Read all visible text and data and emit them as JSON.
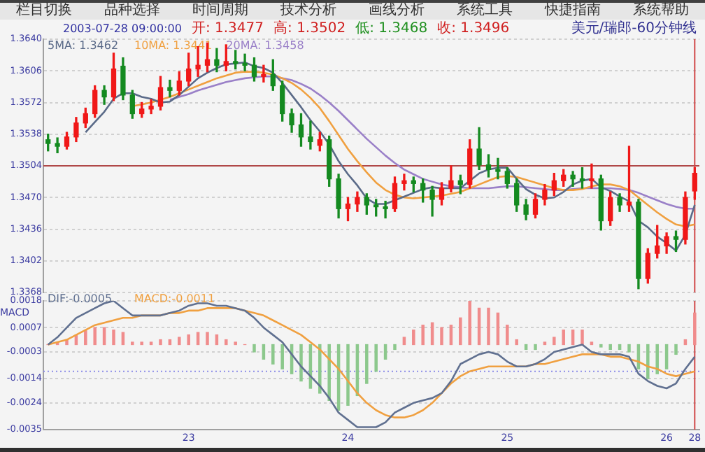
{
  "chart_data": [
    {
      "type": "candlestick",
      "title": "美元/瑞郎-60分钟线",
      "annotations": [
        "栏目切换",
        "品种选择",
        "时间周期",
        "技术分析",
        "画线分析",
        "系统工具",
        "快捷指南",
        "系统帮助",
        "2003-07-28 09:00:00",
        "开: 1.3477",
        "高: 1.3502",
        "低: 1.3468",
        "收: 1.3496"
      ],
      "categories": [
        null,
        null,
        null,
        null,
        null,
        null,
        null,
        null,
        null,
        null,
        null,
        null,
        null,
        null,
        null,
        "23",
        null,
        null,
        null,
        null,
        null,
        null,
        null,
        null,
        null,
        null,
        null,
        null,
        null,
        null,
        null,
        null,
        "24",
        null,
        null,
        null,
        null,
        null,
        null,
        null,
        null,
        null,
        null,
        null,
        null,
        null,
        null,
        null,
        null,
        "25",
        null,
        null,
        null,
        null,
        null,
        null,
        null,
        null,
        null,
        null,
        null,
        null,
        null,
        null,
        null,
        null,
        "26",
        null,
        null,
        "28"
      ],
      "ohlc": [
        [
          1.3532,
          1.3538,
          1.352,
          1.3528
        ],
        [
          1.3528,
          1.3534,
          1.3518,
          1.3525
        ],
        [
          1.3525,
          1.354,
          1.3522,
          1.3535
        ],
        [
          1.3535,
          1.3556,
          1.353,
          1.355
        ],
        [
          1.355,
          1.3566,
          1.3545,
          1.356
        ],
        [
          1.356,
          1.359,
          1.3556,
          1.3585
        ],
        [
          1.3585,
          1.359,
          1.357,
          1.3578
        ],
        [
          1.3578,
          1.3625,
          1.3574,
          1.3608
        ],
        [
          1.3611,
          1.362,
          1.3575,
          1.358
        ],
        [
          1.358,
          1.3585,
          1.3555,
          1.356
        ],
        [
          1.356,
          1.3572,
          1.3556,
          1.3565
        ],
        [
          1.3565,
          1.3575,
          1.356,
          1.3568
        ],
        [
          1.3568,
          1.36,
          1.3564,
          1.3588
        ],
        [
          1.3588,
          1.3596,
          1.3578,
          1.3585
        ],
        [
          1.3585,
          1.3605,
          1.358,
          1.3595
        ],
        [
          1.3595,
          1.3625,
          1.359,
          1.3608
        ],
        [
          1.3608,
          1.3632,
          1.36,
          1.3612
        ],
        [
          1.3612,
          1.3636,
          1.3605,
          1.3618
        ],
        [
          1.3618,
          1.363,
          1.3605,
          1.3612
        ],
        [
          1.3612,
          1.3634,
          1.3606,
          1.3616
        ],
        [
          1.3616,
          1.3628,
          1.3608,
          1.3614
        ],
        [
          1.3614,
          1.3624,
          1.3606,
          1.3612
        ],
        [
          1.3612,
          1.362,
          1.3595,
          1.36
        ],
        [
          1.36,
          1.3612,
          1.3594,
          1.3602
        ],
        [
          1.3602,
          1.3618,
          1.3585,
          1.359
        ],
        [
          1.359,
          1.3595,
          1.3552,
          1.356
        ],
        [
          1.356,
          1.3565,
          1.354,
          1.3548
        ],
        [
          1.3548,
          1.356,
          1.3525,
          1.3535
        ],
        [
          1.3535,
          1.3552,
          1.3522,
          1.353
        ],
        [
          1.3526,
          1.354,
          1.352,
          1.3532
        ],
        [
          1.3532,
          1.3536,
          1.3482,
          1.349
        ],
        [
          1.349,
          1.3495,
          1.3448,
          1.3458
        ],
        [
          1.3458,
          1.347,
          1.3445,
          1.3463
        ],
        [
          1.3463,
          1.3476,
          1.3455,
          1.347
        ],
        [
          1.347,
          1.3474,
          1.3452,
          1.3462
        ],
        [
          1.3462,
          1.3468,
          1.345,
          1.346
        ],
        [
          1.346,
          1.3466,
          1.3448,
          1.3458
        ],
        [
          1.3458,
          1.3492,
          1.3455,
          1.3485
        ],
        [
          1.3485,
          1.3495,
          1.3478,
          1.3488
        ],
        [
          1.3488,
          1.3492,
          1.3476,
          1.3485
        ],
        [
          1.3485,
          1.349,
          1.3465,
          1.3478
        ],
        [
          1.3478,
          1.3482,
          1.345,
          1.3468
        ],
        [
          1.3468,
          1.3486,
          1.3462,
          1.348
        ],
        [
          1.348,
          1.3504,
          1.3476,
          1.3488
        ],
        [
          1.3488,
          1.3494,
          1.3474,
          1.3484
        ],
        [
          1.3484,
          1.3532,
          1.348,
          1.3522
        ],
        [
          1.3522,
          1.3545,
          1.35,
          1.3505
        ],
        [
          1.3505,
          1.3516,
          1.3492,
          1.35
        ],
        [
          1.35,
          1.3512,
          1.349,
          1.3498
        ],
        [
          1.3498,
          1.3502,
          1.348,
          1.3485
        ],
        [
          1.3485,
          1.349,
          1.3455,
          1.3462
        ],
        [
          1.3462,
          1.3468,
          1.3446,
          1.3452
        ],
        [
          1.3452,
          1.3474,
          1.3448,
          1.3468
        ],
        [
          1.3468,
          1.3484,
          1.3462,
          1.3478
        ],
        [
          1.3478,
          1.3496,
          1.3472,
          1.3488
        ],
        [
          1.3488,
          1.35,
          1.3482,
          1.3494
        ],
        [
          1.3494,
          1.3498,
          1.3482,
          1.349
        ],
        [
          1.349,
          1.3502,
          1.348,
          1.3488
        ],
        [
          1.3488,
          1.3506,
          1.348,
          1.349
        ],
        [
          1.349,
          1.3494,
          1.3435,
          1.3445
        ],
        [
          1.3445,
          1.3476,
          1.344,
          1.347
        ],
        [
          1.347,
          1.3474,
          1.3455,
          1.3462
        ],
        [
          1.3462,
          1.3525,
          1.3455,
          1.3465
        ],
        [
          1.3465,
          1.3468,
          1.3372,
          1.3383
        ],
        [
          1.3383,
          1.3415,
          1.3378,
          1.341
        ],
        [
          1.341,
          1.344,
          1.3405,
          1.3418
        ],
        [
          1.3418,
          1.3432,
          1.341,
          1.3428
        ],
        [
          1.3428,
          1.3434,
          1.3412,
          1.3425
        ],
        [
          1.3425,
          1.3476,
          1.342,
          1.347
        ],
        [
          1.3477,
          1.3502,
          1.3468,
          1.3496
        ]
      ],
      "colors": [
        "#148a20",
        "#148a20",
        "#f01818",
        "#f01818",
        "#f01818",
        "#f01818",
        "#148a20",
        "#f01818",
        "#148a20",
        "#148a20",
        "#f01818",
        "#f01818",
        "#f01818",
        "#148a20",
        "#f01818",
        "#f01818",
        "#f01818",
        "#f01818",
        "#148a20",
        "#f01818",
        "#148a20",
        "#148a20",
        "#148a20",
        "#f01818",
        "#148a20",
        "#148a20",
        "#148a20",
        "#148a20",
        "#148a20",
        "#f01818",
        "#148a20",
        "#148a20",
        "#f01818",
        "#f01818",
        "#148a20",
        "#148a20",
        "#148a20",
        "#f01818",
        "#f01818",
        "#148a20",
        "#148a20",
        "#148a20",
        "#f01818",
        "#f01818",
        "#148a20",
        "#f01818",
        "#148a20",
        "#148a20",
        "#148a20",
        "#148a20",
        "#148a20",
        "#148a20",
        "#f01818",
        "#f01818",
        "#f01818",
        "#f01818",
        "#148a20",
        "#148a20",
        "#f01818",
        "#148a20",
        "#f01818",
        "#148a20",
        "#f01818",
        "#148a20",
        "#f01818",
        "#f01818",
        "#f01818",
        "#148a20",
        "#f01818",
        "#f01818"
      ],
      "series": [
        {
          "type": "line",
          "name": "5MA: 1.3462",
          "color": "#5a6a88",
          "values": [
            null,
            null,
            null,
            null,
            1.354,
            1.3551,
            1.3562,
            1.3576,
            1.3582,
            1.3582,
            1.3578,
            1.3576,
            1.3572,
            1.3573,
            1.358,
            1.3589,
            1.3598,
            1.3604,
            1.3609,
            1.3613,
            1.3614,
            1.3615,
            1.3611,
            1.3609,
            1.3604,
            1.3593,
            1.358,
            1.3567,
            1.3553,
            1.3541,
            1.3527,
            1.3509,
            1.3495,
            1.3483,
            1.3469,
            1.3463,
            1.3463,
            1.3467,
            1.3471,
            1.3475,
            1.3479,
            1.3481,
            1.348,
            1.348,
            1.348,
            1.3488,
            1.3496,
            1.35,
            1.3502,
            1.3502,
            1.349,
            1.3479,
            1.3473,
            1.3469,
            1.347,
            1.3476,
            1.3484,
            1.3488,
            1.349,
            1.3481,
            1.3477,
            1.3471,
            1.3466,
            1.3445,
            1.3438,
            1.3428,
            1.3421,
            1.3413,
            1.343,
            1.3462
          ]
        },
        {
          "type": "line",
          "name": "10MA: 1.3441",
          "color": "#f0a040",
          "values": [
            null,
            null,
            null,
            null,
            null,
            null,
            null,
            null,
            null,
            1.3568,
            1.357,
            1.3572,
            1.3575,
            1.3578,
            1.3582,
            1.3586,
            1.359,
            1.3594,
            1.3598,
            1.3601,
            1.3604,
            1.3605,
            1.3605,
            1.3604,
            1.3602,
            1.3598,
            1.3593,
            1.3586,
            1.3577,
            1.3566,
            1.3552,
            1.3537,
            1.3522,
            1.3509,
            1.3497,
            1.3486,
            1.3478,
            1.3473,
            1.347,
            1.3469,
            1.347,
            1.3471,
            1.3472,
            1.3474,
            1.3476,
            1.348,
            1.3484,
            1.3488,
            1.3492,
            1.3493,
            1.3492,
            1.3489,
            1.3486,
            1.3483,
            1.348,
            1.3478,
            1.3478,
            1.3479,
            1.3482,
            1.3484,
            1.3484,
            1.3482,
            1.3478,
            1.347,
            1.3462,
            1.3454,
            1.3447,
            1.3441,
            1.3439,
            1.3441
          ]
        },
        {
          "type": "line",
          "name": "20MA: 1.3458",
          "color": "#9a80c8",
          "values": [
            null,
            null,
            null,
            null,
            null,
            null,
            null,
            null,
            null,
            null,
            null,
            null,
            null,
            1.3575,
            1.3578,
            1.3581,
            1.3585,
            1.3588,
            1.3591,
            1.3594,
            1.3596,
            1.3598,
            1.3599,
            1.36,
            1.36,
            1.3598,
            1.3596,
            1.3592,
            1.3587,
            1.358,
            1.3572,
            1.3563,
            1.3553,
            1.3543,
            1.3533,
            1.3524,
            1.3515,
            1.3507,
            1.35,
            1.3495,
            1.349,
            1.3487,
            1.3484,
            1.3482,
            1.3481,
            1.348,
            1.348,
            1.348,
            1.3481,
            1.3482,
            1.3482,
            1.3481,
            1.348,
            1.3479,
            1.3478,
            1.3478,
            1.3479,
            1.348,
            1.348,
            1.348,
            1.348,
            1.3479,
            1.3478,
            1.3475,
            1.3471,
            1.3467,
            1.3463,
            1.346,
            1.3458,
            1.3458
          ]
        }
      ],
      "ylim": [
        1.3368,
        1.364
      ],
      "yticks": [
        {
          "value": 1.364,
          "label": "1.3640"
        },
        1.3606,
        1.3572,
        1.3538,
        1.3504,
        {
          "value": 1.347,
          "label": "1.3470"
        },
        1.3436,
        1.3402,
        1.3368
      ],
      "tick_labels": "y",
      "grid": "y",
      "legend": "top left",
      "ref_lines": [
        {
          "axis": "y",
          "value": 1.3504,
          "color": "#b04848"
        },
        {
          "axis": "x",
          "value": "28",
          "color": "#d04848"
        }
      ]
    },
    {
      "type": "bar",
      "ylabel": "MACD",
      "categories": [
        null,
        null,
        null,
        null,
        null,
        null,
        null,
        null,
        null,
        null,
        null,
        null,
        null,
        null,
        null,
        "23",
        null,
        null,
        null,
        null,
        null,
        null,
        null,
        null,
        null,
        null,
        null,
        null,
        null,
        null,
        null,
        null,
        "24",
        null,
        null,
        null,
        null,
        null,
        null,
        null,
        null,
        null,
        null,
        null,
        null,
        null,
        null,
        null,
        null,
        "25",
        null,
        null,
        null,
        null,
        null,
        null,
        null,
        null,
        null,
        null,
        null,
        null,
        null,
        null,
        null,
        null,
        "26",
        null,
        null,
        "28"
      ],
      "series": [
        {
          "type": "bar",
          "values": [
            0,
            0.0001,
            0.0002,
            0.0004,
            0.0006,
            0.0007,
            0.0007,
            0.0006,
            0.0005,
            0.0001,
            0.0001,
            0.0001,
            0.0002,
            0.0002,
            0.0003,
            0.0004,
            0.0005,
            0.0005,
            0.0004,
            0.0002,
            0.0001,
            0,
            -0.0003,
            -0.0006,
            -0.0008,
            -0.001,
            -0.0012,
            -0.0015,
            -0.0018,
            -0.002,
            -0.0023,
            -0.0027,
            -0.0025,
            -0.0021,
            -0.0016,
            -0.0011,
            -0.0006,
            -0.0002,
            0.0003,
            0.0006,
            0.0008,
            0.0009,
            0.0007,
            0.0008,
            0.0011,
            0.0018,
            0.0015,
            0.0015,
            0.0013,
            0.0008,
            0.0002,
            -0.0002,
            -0.0002,
            0.0001,
            0.0003,
            0.0006,
            0.0006,
            0.0006,
            0.0001,
            -0.0001,
            -0.0002,
            -0.0002,
            -0.0003,
            -0.001,
            -0.0014,
            -0.0012,
            -0.001,
            -0.0004,
            0.0002,
            0.0013
          ],
          "colors": [
            "#f08c8c",
            "#f08c8c",
            "#f08c8c",
            "#f08c8c",
            "#f08c8c",
            "#f08c8c",
            "#f08c8c",
            "#f08c8c",
            "#f08c8c",
            "#f08c8c",
            "#f08c8c",
            "#f08c8c",
            "#f08c8c",
            "#f08c8c",
            "#f08c8c",
            "#f08c8c",
            "#f08c8c",
            "#f08c8c",
            "#f08c8c",
            "#f08c8c",
            "#f08c8c",
            "#f08c8c",
            "#8cc88c",
            "#8cc88c",
            "#8cc88c",
            "#8cc88c",
            "#8cc88c",
            "#8cc88c",
            "#8cc88c",
            "#8cc88c",
            "#8cc88c",
            "#8cc88c",
            "#8cc88c",
            "#8cc88c",
            "#8cc88c",
            "#8cc88c",
            "#8cc88c",
            "#8cc88c",
            "#f08c8c",
            "#f08c8c",
            "#f08c8c",
            "#f08c8c",
            "#f08c8c",
            "#f08c8c",
            "#f08c8c",
            "#f08c8c",
            "#f08c8c",
            "#f08c8c",
            "#f08c8c",
            "#f08c8c",
            "#f08c8c",
            "#8cc88c",
            "#8cc88c",
            "#f08c8c",
            "#f08c8c",
            "#f08c8c",
            "#f08c8c",
            "#f08c8c",
            "#f08c8c",
            "#8cc88c",
            "#8cc88c",
            "#8cc88c",
            "#8cc88c",
            "#8cc88c",
            "#8cc88c",
            "#8cc88c",
            "#8cc88c",
            "#8cc88c",
            "#f08c8c",
            "#f08c8c"
          ]
        },
        {
          "type": "line",
          "name": "DIF:-0.0005",
          "color": "#607090",
          "values": [
            0,
            0.0003,
            0.0007,
            0.0011,
            0.0013,
            0.0015,
            0.0017,
            0.0018,
            0.0015,
            0.0012,
            0.0012,
            0.0012,
            0.0012,
            0.0013,
            0.0014,
            0.0016,
            0.0017,
            0.0017,
            0.0016,
            0.0016,
            0.0015,
            0.0014,
            0.0011,
            0.0007,
            0.0004,
            0.0001,
            -0.0004,
            -0.0009,
            -0.0013,
            -0.0017,
            -0.0022,
            -0.0028,
            -0.0031,
            -0.0034,
            -0.0034,
            -0.0034,
            -0.0032,
            -0.0028,
            -0.0026,
            -0.0024,
            -0.0023,
            -0.0022,
            -0.002,
            -0.0015,
            -0.0008,
            -0.0006,
            -0.0004,
            -0.0003,
            -0.0004,
            -0.0007,
            -0.0009,
            -0.0009,
            -0.0008,
            -0.0006,
            -0.0003,
            -0.0002,
            -0.0001,
            0,
            -0.0003,
            -0.0004,
            -0.0004,
            -0.0004,
            -0.0005,
            -0.0012,
            -0.0015,
            -0.0017,
            -0.0018,
            -0.0016,
            -0.001,
            -0.0005
          ]
        },
        {
          "type": "line",
          "name": "MACD:-0.0011",
          "color": "#f0a040",
          "values": [
            0,
            0.0001,
            0.0002,
            0.0004,
            0.0006,
            0.0008,
            0.0009,
            0.001,
            0.0011,
            0.0011,
            0.0012,
            0.0012,
            0.0012,
            0.0013,
            0.0013,
            0.0014,
            0.0014,
            0.0015,
            0.0015,
            0.0015,
            0.0015,
            0.0014,
            0.0013,
            0.0012,
            0.001,
            0.0008,
            0.0006,
            0.0004,
            0.0001,
            -0.0002,
            -0.0006,
            -0.001,
            -0.0015,
            -0.002,
            -0.0024,
            -0.0027,
            -0.0029,
            -0.003,
            -0.003,
            -0.0029,
            -0.0027,
            -0.0024,
            -0.002,
            -0.0016,
            -0.0013,
            -0.0011,
            -0.001,
            -0.0009,
            -0.0009,
            -0.0009,
            -0.0009,
            -0.0009,
            -0.0008,
            -0.0008,
            -0.0007,
            -0.0006,
            -0.0005,
            -0.0004,
            -0.0004,
            -0.0004,
            -0.0005,
            -0.0005,
            -0.0006,
            -0.0007,
            -0.0009,
            -0.001,
            -0.0012,
            -0.0013,
            -0.0012,
            -0.0011
          ]
        }
      ],
      "ylim": [
        -0.0035,
        0.0018
      ],
      "yticks": [
        0.0018,
        0.0007,
        -0.0003,
        -0.0014,
        -0.0024,
        -0.0035
      ],
      "grid": "y",
      "legend": "top left",
      "ref_lines": [
        {
          "axis": "y",
          "value": -0.0011,
          "color": "#8c8ce8",
          "line_style": "dotted"
        },
        {
          "axis": "x",
          "value": "28",
          "color": "#d04848"
        }
      ]
    }
  ]
}
